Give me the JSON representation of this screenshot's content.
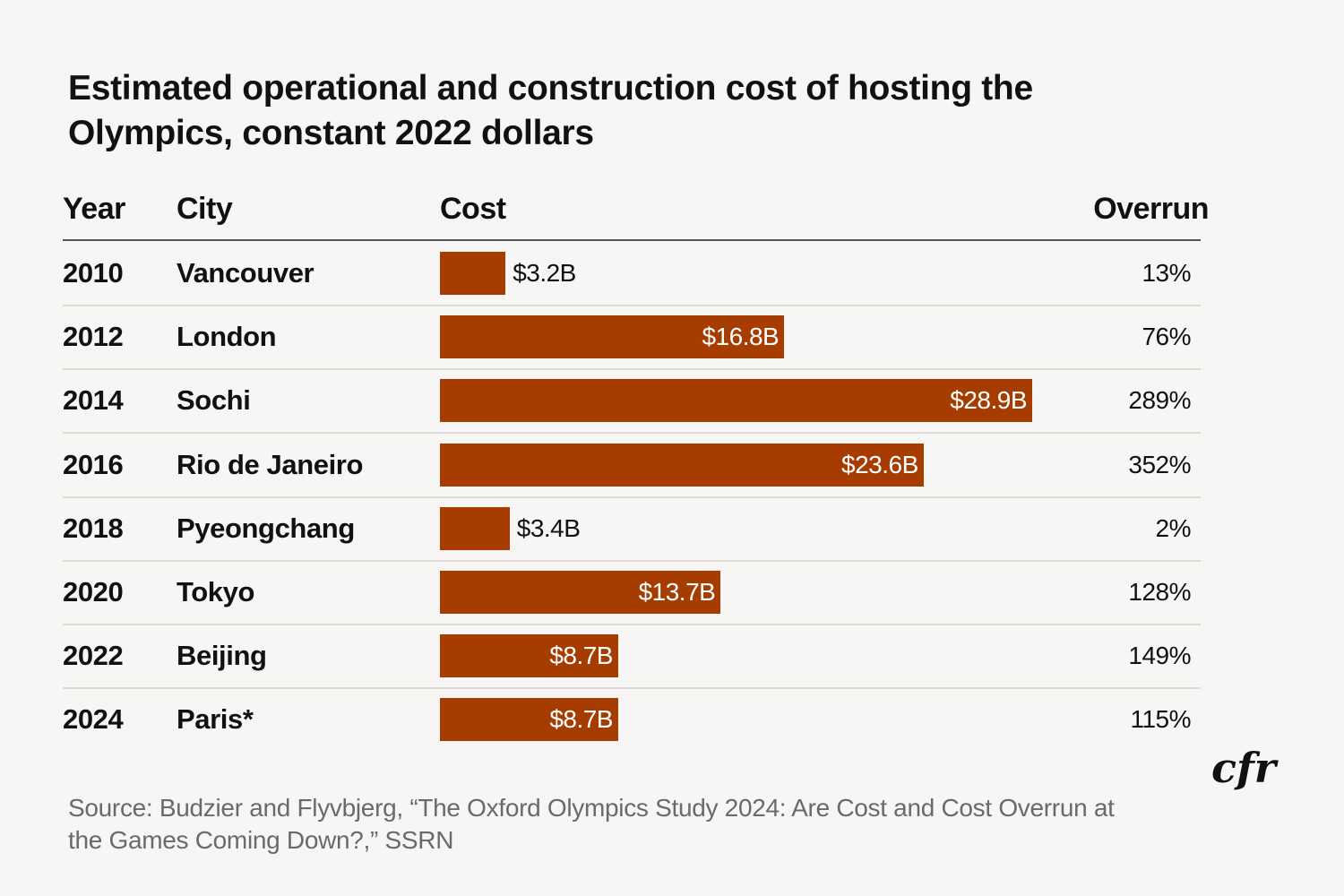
{
  "chart_data": {
    "type": "bar",
    "orientation": "horizontal",
    "title": "Estimated operational and construction cost of hosting the Olympics, constant 2022 dollars",
    "columns": [
      "Year",
      "City",
      "Cost",
      "Overrun"
    ],
    "rows": [
      {
        "year": "2010",
        "city": "Vancouver",
        "cost": 3.2,
        "cost_label": "$3.2B",
        "overrun": "13%"
      },
      {
        "year": "2012",
        "city": "London",
        "cost": 16.8,
        "cost_label": "$16.8B",
        "overrun": "76%"
      },
      {
        "year": "2014",
        "city": "Sochi",
        "cost": 28.9,
        "cost_label": "$28.9B",
        "overrun": "289%"
      },
      {
        "year": "2016",
        "city": "Rio de Janeiro",
        "cost": 23.6,
        "cost_label": "$23.6B",
        "overrun": "352%"
      },
      {
        "year": "2018",
        "city": "Pyeongchang",
        "cost": 3.4,
        "cost_label": "$3.4B",
        "overrun": "2%"
      },
      {
        "year": "2020",
        "city": "Tokyo",
        "cost": 13.7,
        "cost_label": "$13.7B",
        "overrun": "128%"
      },
      {
        "year": "2022",
        "city": "Beijing",
        "cost": 8.7,
        "cost_label": "$8.7B",
        "overrun": "149%"
      },
      {
        "year": "2024",
        "city": "Paris*",
        "cost": 8.7,
        "cost_label": "$8.7B",
        "overrun": "115%"
      }
    ],
    "unit": "billion USD",
    "bar_color": "#a63c00",
    "source": "Source: Budzier and Flyvbjerg, “The Oxford Olympics Study 2024: Are Cost and Cost Overrun at the Games Coming Down?,” SSRN"
  },
  "logo": "cfr"
}
